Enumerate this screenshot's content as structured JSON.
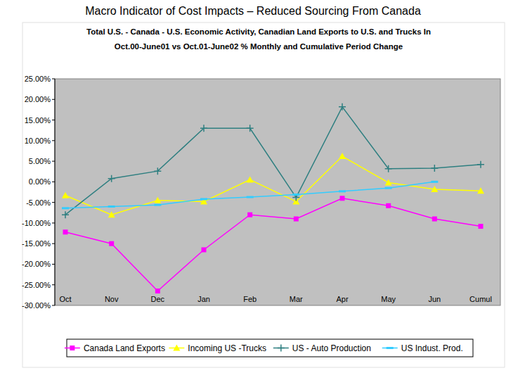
{
  "chart_data": {
    "type": "line",
    "title": "Macro Indicator of Cost Impacts – Reduced Sourcing From Canada",
    "subtitle": [
      "Total U.S. - Canada - U.S. Economic Activity, Canadian Land Exports to U.S. and Trucks In",
      "Oct.00-June01 vs Oct.01-June02 % Monthly and Cumulative Period Change"
    ],
    "categories": [
      "Oct",
      "Nov",
      "Dec",
      "Jan",
      "Feb",
      "Mar",
      "Apr",
      "May",
      "Jun",
      "Cumul"
    ],
    "series": [
      {
        "name": "Canada Land Exports",
        "color": "#ff00ff",
        "marker": "square",
        "values": [
          -12.2,
          -15,
          -26.5,
          -16.5,
          -8,
          -9,
          -4,
          -5.8,
          -9,
          -10.8
        ]
      },
      {
        "name": "Incoming US -Trucks",
        "color": "#ffff00",
        "marker": "triangle",
        "values": [
          -3.3,
          -8,
          -4.5,
          -4.8,
          0.5,
          -4.8,
          6.2,
          -0.2,
          -1.8,
          -2.2
        ]
      },
      {
        "name": "US - Auto Production",
        "color": "#2e7f80",
        "marker": "plus",
        "values": [
          -8,
          0.8,
          2.6,
          13,
          13,
          -3.8,
          18.2,
          3.2,
          3.3,
          4.2
        ]
      },
      {
        "name": "US Indust. Prod.",
        "color": "#33ccff",
        "marker": "dash",
        "values": [
          -6.4,
          -6,
          -5.6,
          -4.2,
          -3.7,
          -3.1,
          -2.3,
          -1.5,
          0.0,
          null
        ]
      }
    ],
    "ylim": [
      -30,
      25
    ],
    "yticks": [
      {
        "value": -30,
        "label": "-30.00%"
      },
      {
        "value": -25,
        "label": "-25.00%"
      },
      {
        "value": -20,
        "label": "-20.00%"
      },
      {
        "value": -15,
        "label": "-15.00%"
      },
      {
        "value": -10,
        "label": "-10.00%"
      },
      {
        "value": -5,
        "label": "-5.00%"
      },
      {
        "value": 0,
        "label": "0.00%"
      },
      {
        "value": 5,
        "label": "5.00%"
      },
      {
        "value": 10,
        "label": "10.00%"
      },
      {
        "value": 15,
        "label": "15.00%"
      },
      {
        "value": 20,
        "label": "20.00%"
      },
      {
        "value": 25,
        "label": "25.00%"
      }
    ],
    "grid": false,
    "legend": "bottom"
  }
}
